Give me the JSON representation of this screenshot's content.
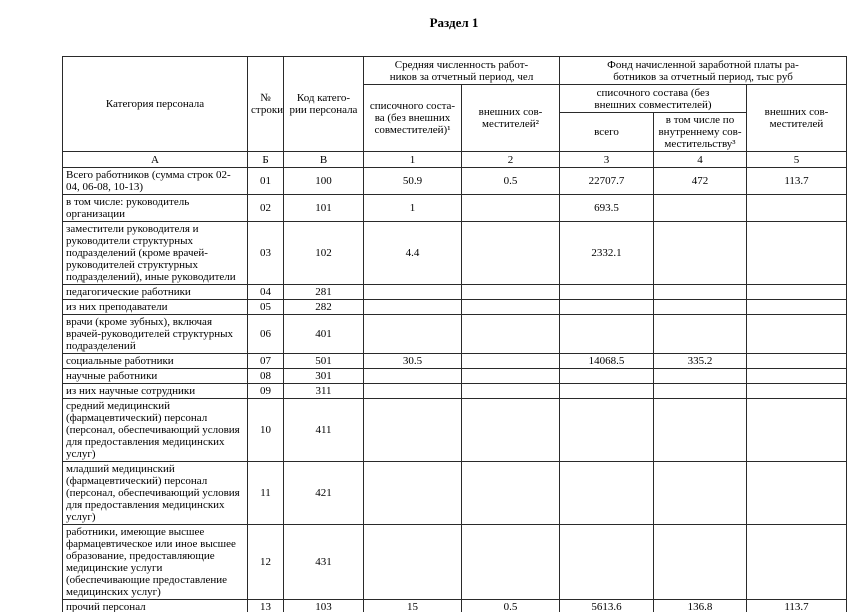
{
  "page": {
    "title": "Раздел 1"
  },
  "table": {
    "header": {
      "category": "Категория персонала",
      "line_no": "№\nстроки",
      "code": "Код катего-\nрии персонала",
      "avg_group": "Средняя численность работ-\nников за отчетный период, чел",
      "fund_group": "Фонд начисленной заработной платы ра-\nботников за отчетный период, тыс руб",
      "avg_list": "списочного соста-\nва (без внешних\nсовместителей)¹",
      "avg_external": "внешних сов-\nместителей²",
      "fund_list": "списочного состава (без\nвнешних совместителей)",
      "fund_total": "всего",
      "fund_internal": "в том числе по\nвнутреннему сов-\nместительству³",
      "fund_external": "внешних сов-\nместителей",
      "letters": [
        "А",
        "Б",
        "В",
        "1",
        "2",
        "3",
        "4",
        "5"
      ]
    },
    "rows": [
      {
        "category": "Всего работников (сумма строк 02-04, 06-08, 10-13)",
        "line": "01",
        "code": "100",
        "c1": "50.9",
        "c2": "0.5",
        "c3": "22707.7",
        "c4": "472",
        "c5": "113.7"
      },
      {
        "category": "в том числе: руководитель организации",
        "line": "02",
        "code": "101",
        "c1": "1",
        "c2": "",
        "c3": "693.5",
        "c4": "",
        "c5": ""
      },
      {
        "category": "заместители руководителя и руководители структурных подразделений (кроме врачей-руководителей структурных подразделений), иные руководители",
        "line": "03",
        "code": "102",
        "c1": "4.4",
        "c2": "",
        "c3": "2332.1",
        "c4": "",
        "c5": ""
      },
      {
        "category": "педагогические работники",
        "line": "04",
        "code": "281",
        "c1": "",
        "c2": "",
        "c3": "",
        "c4": "",
        "c5": ""
      },
      {
        "category": "из них преподаватели",
        "line": "05",
        "code": "282",
        "c1": "",
        "c2": "",
        "c3": "",
        "c4": "",
        "c5": ""
      },
      {
        "category": "врачи (кроме зубных), включая врачей-руководителей структурных подразделений",
        "line": "06",
        "code": "401",
        "c1": "",
        "c2": "",
        "c3": "",
        "c4": "",
        "c5": ""
      },
      {
        "category": "социальные работники",
        "line": "07",
        "code": "501",
        "c1": "30.5",
        "c2": "",
        "c3": "14068.5",
        "c4": "335.2",
        "c5": ""
      },
      {
        "category": "научные работники",
        "line": "08",
        "code": "301",
        "c1": "",
        "c2": "",
        "c3": "",
        "c4": "",
        "c5": ""
      },
      {
        "category": "из них научные сотрудники",
        "line": "09",
        "code": "311",
        "c1": "",
        "c2": "",
        "c3": "",
        "c4": "",
        "c5": ""
      },
      {
        "category": "средний медицинский (фармацевтический) персонал (персонал, обеспечивающий условия для предоставления медицинских услуг)",
        "line": "10",
        "code": "411",
        "c1": "",
        "c2": "",
        "c3": "",
        "c4": "",
        "c5": ""
      },
      {
        "category": "младший медицинский (фармацевтический) персонал (персонал, обеспечивающий условия для предоставления медицинских услуг)",
        "line": "11",
        "code": "421",
        "c1": "",
        "c2": "",
        "c3": "",
        "c4": "",
        "c5": ""
      },
      {
        "category": "работники, имеющие высшее фармацевтическое или иное высшее образование, предоставляющие медицинские услуги (обеспечивающие предоставление медицинских услуг)",
        "line": "12",
        "code": "431",
        "c1": "",
        "c2": "",
        "c3": "",
        "c4": "",
        "c5": ""
      },
      {
        "category": "прочий персонал",
        "line": "13",
        "code": "103",
        "c1": "15",
        "c2": "0.5",
        "c3": "5613.6",
        "c4": "136.8",
        "c5": "113.7"
      }
    ]
  }
}
